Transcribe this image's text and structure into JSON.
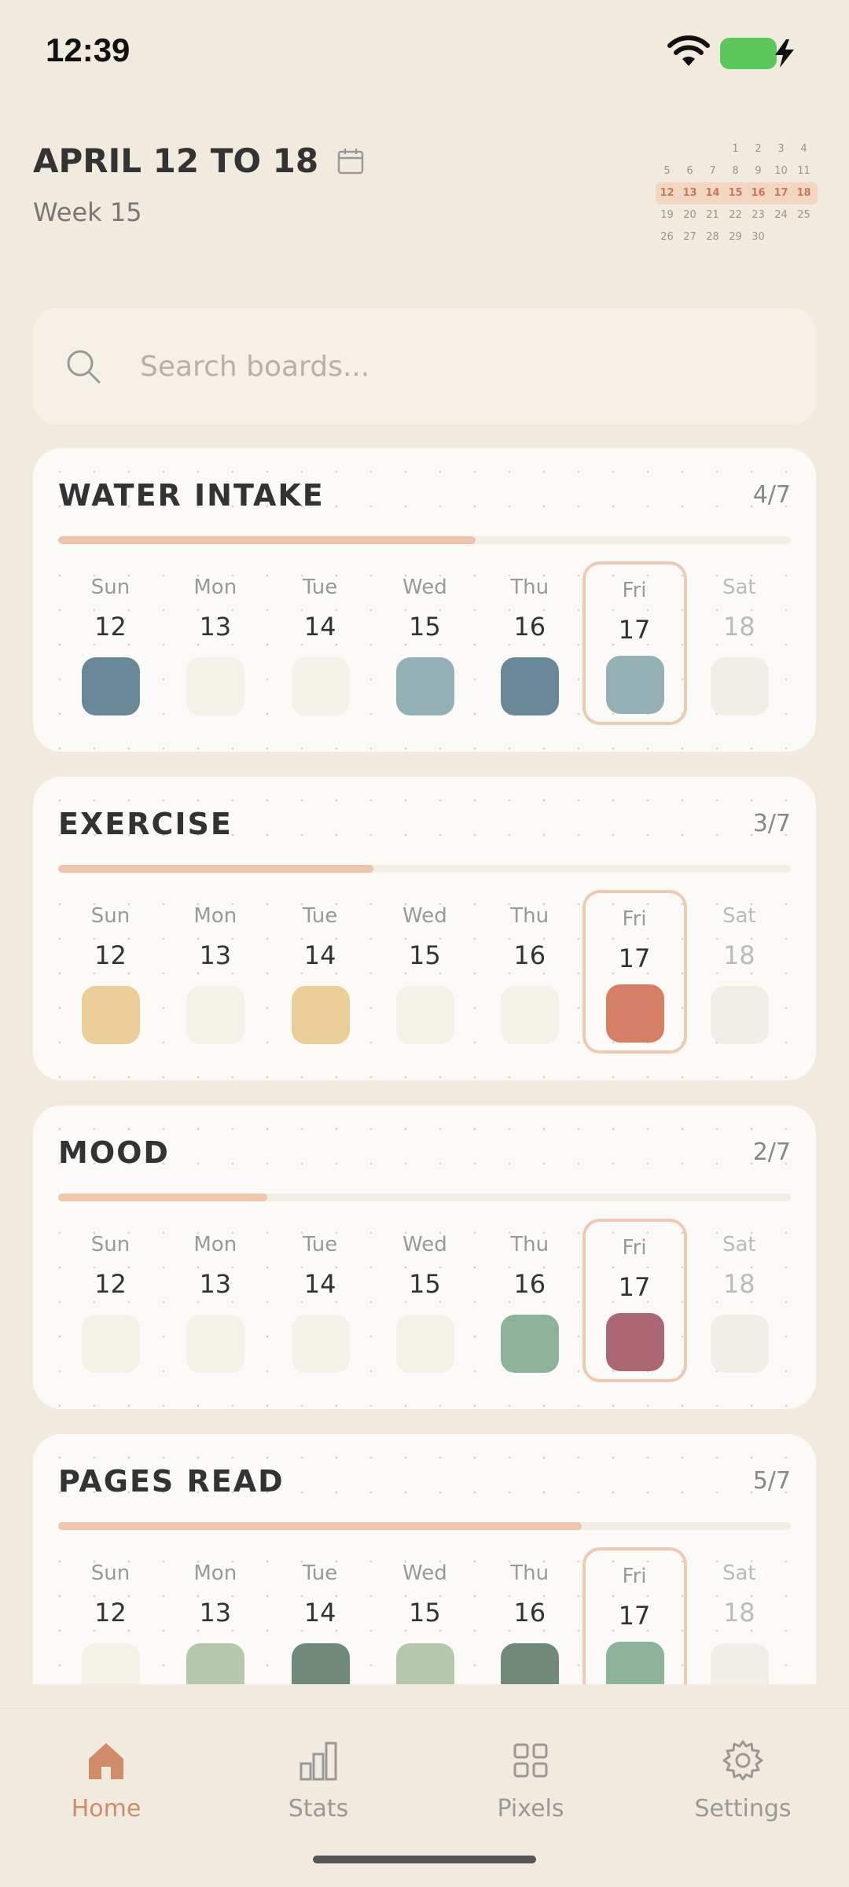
{
  "status_bar": {
    "time": "12:39"
  },
  "header": {
    "range_title": "APRIL 12 TO 18",
    "week_label": "Week 15"
  },
  "mini_calendar": {
    "rows": [
      [
        "",
        "",
        "",
        "1",
        "2",
        "3",
        "4"
      ],
      [
        "5",
        "6",
        "7",
        "8",
        "9",
        "10",
        "11"
      ],
      [
        "12",
        "13",
        "14",
        "15",
        "16",
        "17",
        "18"
      ],
      [
        "19",
        "20",
        "21",
        "22",
        "23",
        "24",
        "25"
      ],
      [
        "26",
        "27",
        "28",
        "29",
        "30",
        "",
        ""
      ]
    ],
    "highlight_row": 2
  },
  "search": {
    "placeholder": "Search boards..."
  },
  "boards": [
    {
      "title": "WATER INTAKE",
      "count": "4/7",
      "progress": 0.57,
      "days": [
        {
          "name": "Sun",
          "num": "12",
          "color": "#6a8998"
        },
        {
          "name": "Mon",
          "num": "13",
          "color": ""
        },
        {
          "name": "Tue",
          "num": "14",
          "color": ""
        },
        {
          "name": "Wed",
          "num": "15",
          "color": "#93b0b4"
        },
        {
          "name": "Thu",
          "num": "16",
          "color": "#6a8998"
        },
        {
          "name": "Fri",
          "num": "17",
          "color": "#93b0b4",
          "today": true
        },
        {
          "name": "Sat",
          "num": "18",
          "color": "",
          "future": true
        }
      ]
    },
    {
      "title": "EXERCISE",
      "count": "3/7",
      "progress": 0.43,
      "days": [
        {
          "name": "Sun",
          "num": "12",
          "color": "#ebcd97"
        },
        {
          "name": "Mon",
          "num": "13",
          "color": ""
        },
        {
          "name": "Tue",
          "num": "14",
          "color": "#ebcd97"
        },
        {
          "name": "Wed",
          "num": "15",
          "color": ""
        },
        {
          "name": "Thu",
          "num": "16",
          "color": ""
        },
        {
          "name": "Fri",
          "num": "17",
          "color": "#d57f66",
          "today": true
        },
        {
          "name": "Sat",
          "num": "18",
          "color": "",
          "future": true
        }
      ]
    },
    {
      "title": "MOOD",
      "count": "2/7",
      "progress": 0.285,
      "days": [
        {
          "name": "Sun",
          "num": "12",
          "color": ""
        },
        {
          "name": "Mon",
          "num": "13",
          "color": ""
        },
        {
          "name": "Tue",
          "num": "14",
          "color": ""
        },
        {
          "name": "Wed",
          "num": "15",
          "color": ""
        },
        {
          "name": "Thu",
          "num": "16",
          "color": "#8db29b"
        },
        {
          "name": "Fri",
          "num": "17",
          "color": "#ac6775",
          "today": true
        },
        {
          "name": "Sat",
          "num": "18",
          "color": "",
          "future": true
        }
      ]
    },
    {
      "title": "PAGES READ",
      "count": "5/7",
      "progress": 0.715,
      "days": [
        {
          "name": "Sun",
          "num": "12",
          "color": ""
        },
        {
          "name": "Mon",
          "num": "13",
          "color": "#b6c8ab"
        },
        {
          "name": "Tue",
          "num": "14",
          "color": "#6f897b"
        },
        {
          "name": "Wed",
          "num": "15",
          "color": "#b6c8ab"
        },
        {
          "name": "Thu",
          "num": "16",
          "color": "#6f897b"
        },
        {
          "name": "Fri",
          "num": "17",
          "color": "#8db29b",
          "today": true
        },
        {
          "name": "Sat",
          "num": "18",
          "color": "",
          "future": true
        }
      ]
    }
  ],
  "nav": [
    {
      "label": "Home",
      "icon": "home-icon",
      "active": true
    },
    {
      "label": "Stats",
      "icon": "stats-icon",
      "active": false
    },
    {
      "label": "Pixels",
      "icon": "grid-icon",
      "active": false
    },
    {
      "label": "Settings",
      "icon": "gear-icon",
      "active": false
    }
  ],
  "colors": {
    "accent": "#d08b68",
    "background": "#f1ebdf",
    "card": "#fbfaf6"
  }
}
